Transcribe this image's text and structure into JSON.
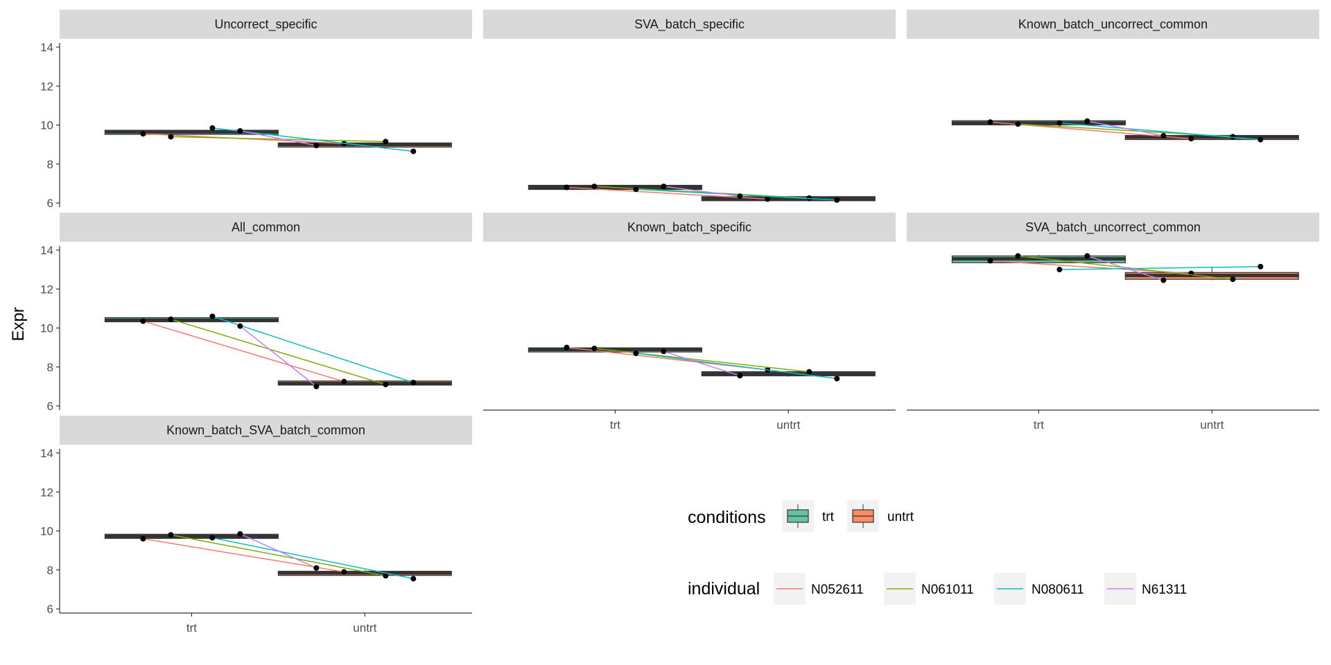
{
  "chart_data": {
    "type": "box",
    "ylabel": "Expr",
    "categories": [
      "trt",
      "untrt"
    ],
    "ylim": [
      6,
      14
    ],
    "y_ticks": [
      6,
      8,
      10,
      12,
      14
    ],
    "grid": false,
    "legends": {
      "conditions": {
        "title": "conditions",
        "items": [
          {
            "label": "trt",
            "color": "#66c2a5"
          },
          {
            "label": "untrt",
            "color": "#fc8d62"
          }
        ]
      },
      "individual": {
        "title": "individual",
        "items": [
          {
            "label": "N052611",
            "color": "#f8766d"
          },
          {
            "label": "N061011",
            "color": "#7cae00"
          },
          {
            "label": "N080611",
            "color": "#00bfc4"
          },
          {
            "label": "N61311",
            "color": "#c77cff"
          }
        ]
      }
    },
    "individuals": [
      "N052611",
      "N061011",
      "N080611",
      "N61311"
    ],
    "panels": [
      {
        "title": "Uncorrect_specific",
        "trt": {
          "N052611": 9.55,
          "N061011": 9.4,
          "N080611": 9.85,
          "N61311": 9.7
        },
        "untrt": {
          "N052611": 9.05,
          "N061011": 9.15,
          "N080611": 8.65,
          "N61311": 8.95
        },
        "boxes": {
          "trt": [
            9.5,
            9.55,
            9.65,
            9.7,
            9.75
          ],
          "untrt": [
            8.85,
            8.9,
            9.0,
            9.05,
            9.1
          ]
        }
      },
      {
        "title": "SVA_batch_specific",
        "trt": {
          "N052611": 6.8,
          "N061011": 6.85,
          "N080611": 6.7,
          "N61311": 6.85
        },
        "untrt": {
          "N052611": 6.2,
          "N061011": 6.25,
          "N080611": 6.15,
          "N61311": 6.35
        },
        "boxes": {
          "trt": [
            6.7,
            6.75,
            6.8,
            6.85,
            6.9
          ],
          "untrt": [
            6.15,
            6.18,
            6.22,
            6.26,
            6.3
          ]
        }
      },
      {
        "title": "Known_batch_uncorrect_common",
        "trt": {
          "N052611": 10.15,
          "N061011": 10.05,
          "N080611": 10.1,
          "N61311": 10.2
        },
        "untrt": {
          "N052611": 9.3,
          "N061011": 9.4,
          "N080611": 9.25,
          "N61311": 9.45
        },
        "boxes": {
          "trt": [
            10.05,
            10.08,
            10.1,
            10.15,
            10.2
          ],
          "untrt": [
            9.25,
            9.3,
            9.38,
            9.42,
            9.45
          ]
        }
      },
      {
        "title": "All_common",
        "trt": {
          "N052611": 10.35,
          "N061011": 10.45,
          "N080611": 10.6,
          "N61311": 10.1
        },
        "untrt": {
          "N052611": 7.25,
          "N061011": 7.1,
          "N080611": 7.2,
          "N61311": 7.0
        },
        "boxes": {
          "trt": [
            10.3,
            10.35,
            10.4,
            10.5,
            10.55
          ],
          "untrt": [
            7.05,
            7.1,
            7.15,
            7.25,
            7.3
          ]
        }
      },
      {
        "title": "Known_batch_specific",
        "trt": {
          "N052611": 9.0,
          "N061011": 8.95,
          "N080611": 8.7,
          "N61311": 8.8
        },
        "untrt": {
          "N052611": 7.85,
          "N061011": 7.75,
          "N080611": 7.4,
          "N61311": 7.55
        },
        "boxes": {
          "trt": [
            8.75,
            8.8,
            8.9,
            8.95,
            9.0
          ],
          "untrt": [
            7.5,
            7.55,
            7.65,
            7.75,
            7.8
          ]
        }
      },
      {
        "title": "SVA_batch_uncorrect_common",
        "trt": {
          "N052611": 13.45,
          "N061011": 13.7,
          "N080611": 13.0,
          "N61311": 13.7
        },
        "untrt": {
          "N052611": 12.8,
          "N061011": 12.5,
          "N080611": 13.15,
          "N61311": 12.45
        },
        "boxes": {
          "trt": [
            13.3,
            13.35,
            13.55,
            13.7,
            13.75
          ],
          "untrt": [
            12.45,
            12.5,
            12.7,
            12.85,
            13.15
          ]
        }
      },
      {
        "title": "Known_batch_SVA_batch_common",
        "trt": {
          "N052611": 9.6,
          "N061011": 9.8,
          "N080611": 9.65,
          "N61311": 9.85
        },
        "untrt": {
          "N052611": 7.9,
          "N061011": 7.7,
          "N080611": 7.55,
          "N61311": 8.1
        },
        "boxes": {
          "trt": [
            9.6,
            9.65,
            9.72,
            9.8,
            9.85
          ],
          "untrt": [
            7.7,
            7.75,
            7.85,
            7.9,
            8.0
          ]
        }
      }
    ]
  }
}
